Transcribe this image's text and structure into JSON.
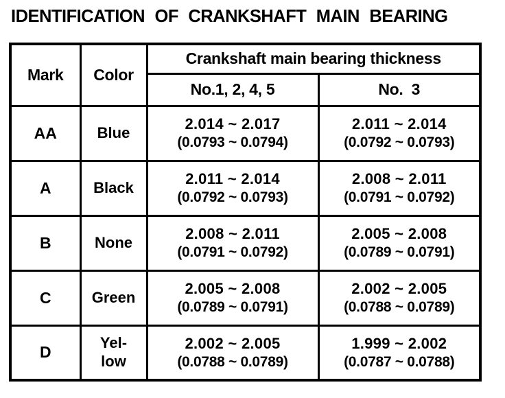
{
  "title": "IDENTIFICATION OF CRANKSHAFT MAIN BEARING",
  "colors": {
    "text": "#000000",
    "background": "#ffffff",
    "border": "#000000"
  },
  "table": {
    "header": {
      "mark": "Mark",
      "color": "Color",
      "thickness_group": "Crankshaft main bearing thickness",
      "journals_1245": "No.1, 2, 4, 5",
      "journal_3": "No.  3"
    },
    "rows": [
      {
        "mark": "AA",
        "color": "Blue",
        "j1245_mm": "2.014 ~ 2.017",
        "j1245_in": "(0.0793 ~ 0.0794)",
        "j3_mm": "2.011 ~ 2.014",
        "j3_in": "(0.0792 ~ 0.0793)"
      },
      {
        "mark": "A",
        "color": "Black",
        "j1245_mm": "2.011 ~ 2.014",
        "j1245_in": "(0.0792 ~ 0.0793)",
        "j3_mm": "2.008 ~ 2.011",
        "j3_in": "(0.0791 ~ 0.0792)"
      },
      {
        "mark": "B",
        "color": "None",
        "j1245_mm": "2.008 ~ 2.011",
        "j1245_in": "(0.0791 ~ 0.0792)",
        "j3_mm": "2.005 ~ 2.008",
        "j3_in": "(0.0789 ~ 0.0791)"
      },
      {
        "mark": "C",
        "color": "Green",
        "j1245_mm": "2.005 ~ 2.008",
        "j1245_in": "(0.0789 ~ 0.0791)",
        "j3_mm": "2.002 ~ 2.005",
        "j3_in": "(0.0788 ~ 0.0789)"
      },
      {
        "mark": "D",
        "color": "Yel-\nlow",
        "j1245_mm": "2.002 ~ 2.005",
        "j1245_in": "(0.0788 ~ 0.0789)",
        "j3_mm": "1.999 ~ 2.002",
        "j3_in": "(0.0787 ~ 0.0788)"
      }
    ]
  }
}
